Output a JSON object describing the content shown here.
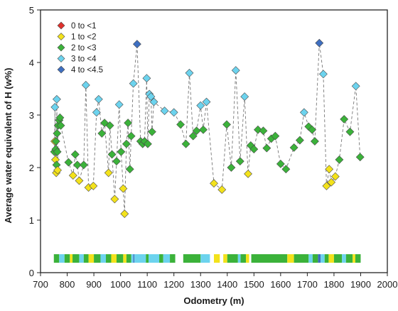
{
  "chart_data": {
    "type": "scatter",
    "xlabel": "Odometry (m)",
    "ylabel": "Average water equivalent of H (w%)",
    "xlim": [
      700,
      2000
    ],
    "ylim": [
      0,
      5
    ],
    "x_ticks": [
      "700",
      "800",
      "900",
      "1000",
      "1100",
      "1200",
      "1300",
      "1400",
      "1500",
      "1600",
      "1700",
      "1800",
      "1900",
      "2000"
    ],
    "y_ticks": [
      "0",
      "1",
      "2",
      "3",
      "4",
      "5"
    ],
    "grid": false,
    "legend_position": "top-left",
    "line_style": "dashed connecting line",
    "legend": [
      {
        "key": "c0",
        "label": "0 to <1",
        "color": "#e0312c"
      },
      {
        "key": "c1",
        "label": "1 to <2",
        "color": "#f3e21b"
      },
      {
        "key": "c2",
        "label": "2 to <3",
        "color": "#3bb23a"
      },
      {
        "key": "c3",
        "label": "3 to <4",
        "color": "#6cd3ee"
      },
      {
        "key": "c4",
        "label": "4 to <4.5",
        "color": "#3e6fc1"
      }
    ],
    "points": [
      [
        752,
        2.3,
        "c2"
      ],
      [
        753,
        2.5,
        "c1"
      ],
      [
        754,
        3.15,
        "c3"
      ],
      [
        756,
        2.15,
        "c1"
      ],
      [
        757,
        2.35,
        "c2"
      ],
      [
        758,
        2.5,
        "c2"
      ],
      [
        759,
        1.9,
        "c1"
      ],
      [
        760,
        2.05,
        "c2"
      ],
      [
        761,
        3.3,
        "c3"
      ],
      [
        762,
        2.65,
        "c2"
      ],
      [
        763,
        2.3,
        "c2"
      ],
      [
        764,
        1.95,
        "c1"
      ],
      [
        766,
        2.8,
        "c2"
      ],
      [
        770,
        2.9,
        "c2"
      ],
      [
        773,
        2.95,
        "c2"
      ],
      [
        776,
        2.8,
        "c2"
      ],
      [
        805,
        2.1,
        "c2"
      ],
      [
        822,
        1.85,
        "c1"
      ],
      [
        830,
        2.25,
        "c2"
      ],
      [
        838,
        2.05,
        "c2"
      ],
      [
        845,
        1.75,
        "c1"
      ],
      [
        862,
        2.05,
        "c2"
      ],
      [
        870,
        3.57,
        "c3"
      ],
      [
        880,
        1.62,
        "c1"
      ],
      [
        898,
        1.65,
        "c1"
      ],
      [
        910,
        3.05,
        "c3"
      ],
      [
        918,
        3.3,
        "c3"
      ],
      [
        930,
        2.65,
        "c2"
      ],
      [
        940,
        2.85,
        "c2"
      ],
      [
        955,
        1.9,
        "c1"
      ],
      [
        960,
        2.8,
        "c2"
      ],
      [
        968,
        2.25,
        "c2"
      ],
      [
        978,
        1.4,
        "c1"
      ],
      [
        985,
        2.12,
        "c2"
      ],
      [
        995,
        3.2,
        "c3"
      ],
      [
        1002,
        2.3,
        "c2"
      ],
      [
        1010,
        1.6,
        "c1"
      ],
      [
        1015,
        1.12,
        "c1"
      ],
      [
        1022,
        2.45,
        "c2"
      ],
      [
        1028,
        2.85,
        "c2"
      ],
      [
        1035,
        1.97,
        "c2"
      ],
      [
        1040,
        2.6,
        "c2"
      ],
      [
        1048,
        3.6,
        "c3"
      ],
      [
        1062,
        4.35,
        "c4"
      ],
      [
        1075,
        2.5,
        "c2"
      ],
      [
        1083,
        2.45,
        "c2"
      ],
      [
        1090,
        2.5,
        "c2"
      ],
      [
        1098,
        3.7,
        "c3"
      ],
      [
        1102,
        2.45,
        "c2"
      ],
      [
        1108,
        3.4,
        "c3"
      ],
      [
        1114,
        3.35,
        "c3"
      ],
      [
        1118,
        2.68,
        "c2"
      ],
      [
        1125,
        3.25,
        "c3"
      ],
      [
        1165,
        3.08,
        "c3"
      ],
      [
        1200,
        3.05,
        "c3"
      ],
      [
        1225,
        2.82,
        "c2"
      ],
      [
        1245,
        2.45,
        "c2"
      ],
      [
        1258,
        3.8,
        "c3"
      ],
      [
        1272,
        2.6,
        "c2"
      ],
      [
        1285,
        2.7,
        "c2"
      ],
      [
        1300,
        3.18,
        "c3"
      ],
      [
        1310,
        2.72,
        "c2"
      ],
      [
        1322,
        3.25,
        "c3"
      ],
      [
        1350,
        1.7,
        "c1"
      ],
      [
        1380,
        1.58,
        "c1"
      ],
      [
        1398,
        2.82,
        "c2"
      ],
      [
        1415,
        2.0,
        "c2"
      ],
      [
        1432,
        3.85,
        "c3"
      ],
      [
        1448,
        2.12,
        "c2"
      ],
      [
        1465,
        3.35,
        "c3"
      ],
      [
        1478,
        1.88,
        "c1"
      ],
      [
        1488,
        2.42,
        "c2"
      ],
      [
        1500,
        2.35,
        "c2"
      ],
      [
        1515,
        2.72,
        "c2"
      ],
      [
        1535,
        2.7,
        "c2"
      ],
      [
        1548,
        2.37,
        "c2"
      ],
      [
        1565,
        2.55,
        "c2"
      ],
      [
        1580,
        2.6,
        "c2"
      ],
      [
        1600,
        2.07,
        "c2"
      ],
      [
        1620,
        1.97,
        "c2"
      ],
      [
        1650,
        2.38,
        "c2"
      ],
      [
        1672,
        2.52,
        "c2"
      ],
      [
        1688,
        3.05,
        "c3"
      ],
      [
        1705,
        2.78,
        "c2"
      ],
      [
        1718,
        2.72,
        "c2"
      ],
      [
        1728,
        2.5,
        "c2"
      ],
      [
        1745,
        4.37,
        "c4"
      ],
      [
        1760,
        3.78,
        "c3"
      ],
      [
        1772,
        1.65,
        "c1"
      ],
      [
        1782,
        1.97,
        "c1"
      ],
      [
        1790,
        1.72,
        "c1"
      ],
      [
        1805,
        1.83,
        "c1"
      ],
      [
        1820,
        2.15,
        "c2"
      ],
      [
        1838,
        2.92,
        "c2"
      ],
      [
        1860,
        2.68,
        "c2"
      ],
      [
        1882,
        3.55,
        "c3"
      ],
      [
        1898,
        2.2,
        "c2"
      ]
    ],
    "strip_y": 0.27,
    "strip_segments": [
      [
        750,
        770,
        "c2"
      ],
      [
        770,
        790,
        "c3"
      ],
      [
        790,
        810,
        "c2"
      ],
      [
        810,
        820,
        "c1"
      ],
      [
        820,
        845,
        "c2"
      ],
      [
        845,
        862,
        "c3"
      ],
      [
        862,
        880,
        "c2"
      ],
      [
        880,
        900,
        "c1"
      ],
      [
        900,
        925,
        "c2"
      ],
      [
        925,
        945,
        "c3"
      ],
      [
        945,
        965,
        "c2"
      ],
      [
        965,
        985,
        "c1"
      ],
      [
        985,
        1010,
        "c2"
      ],
      [
        1010,
        1022,
        "c1"
      ],
      [
        1022,
        1040,
        "c2"
      ],
      [
        1040,
        1048,
        "c3"
      ],
      [
        1048,
        1052,
        "c4"
      ],
      [
        1052,
        1095,
        "c3"
      ],
      [
        1095,
        1105,
        "c2"
      ],
      [
        1105,
        1145,
        "c3"
      ],
      [
        1145,
        1160,
        "c2"
      ],
      [
        1160,
        1185,
        "c3"
      ],
      [
        1185,
        1205,
        "c2"
      ],
      [
        1235,
        1300,
        "c2"
      ],
      [
        1300,
        1335,
        "c3"
      ],
      [
        1350,
        1372,
        "c1"
      ],
      [
        1385,
        1400,
        "c1"
      ],
      [
        1400,
        1440,
        "c2"
      ],
      [
        1440,
        1450,
        "c3"
      ],
      [
        1450,
        1470,
        "c2"
      ],
      [
        1470,
        1482,
        "c1"
      ],
      [
        1490,
        1625,
        "c2"
      ],
      [
        1625,
        1650,
        "c1"
      ],
      [
        1650,
        1705,
        "c2"
      ],
      [
        1705,
        1720,
        "c3"
      ],
      [
        1720,
        1740,
        "c2"
      ],
      [
        1740,
        1750,
        "c4"
      ],
      [
        1750,
        1765,
        "c3"
      ],
      [
        1765,
        1780,
        "c2"
      ],
      [
        1780,
        1800,
        "c1"
      ],
      [
        1800,
        1830,
        "c2"
      ],
      [
        1830,
        1845,
        "c3"
      ],
      [
        1845,
        1870,
        "c2"
      ],
      [
        1870,
        1880,
        "c1"
      ],
      [
        1880,
        1900,
        "c2"
      ]
    ]
  }
}
